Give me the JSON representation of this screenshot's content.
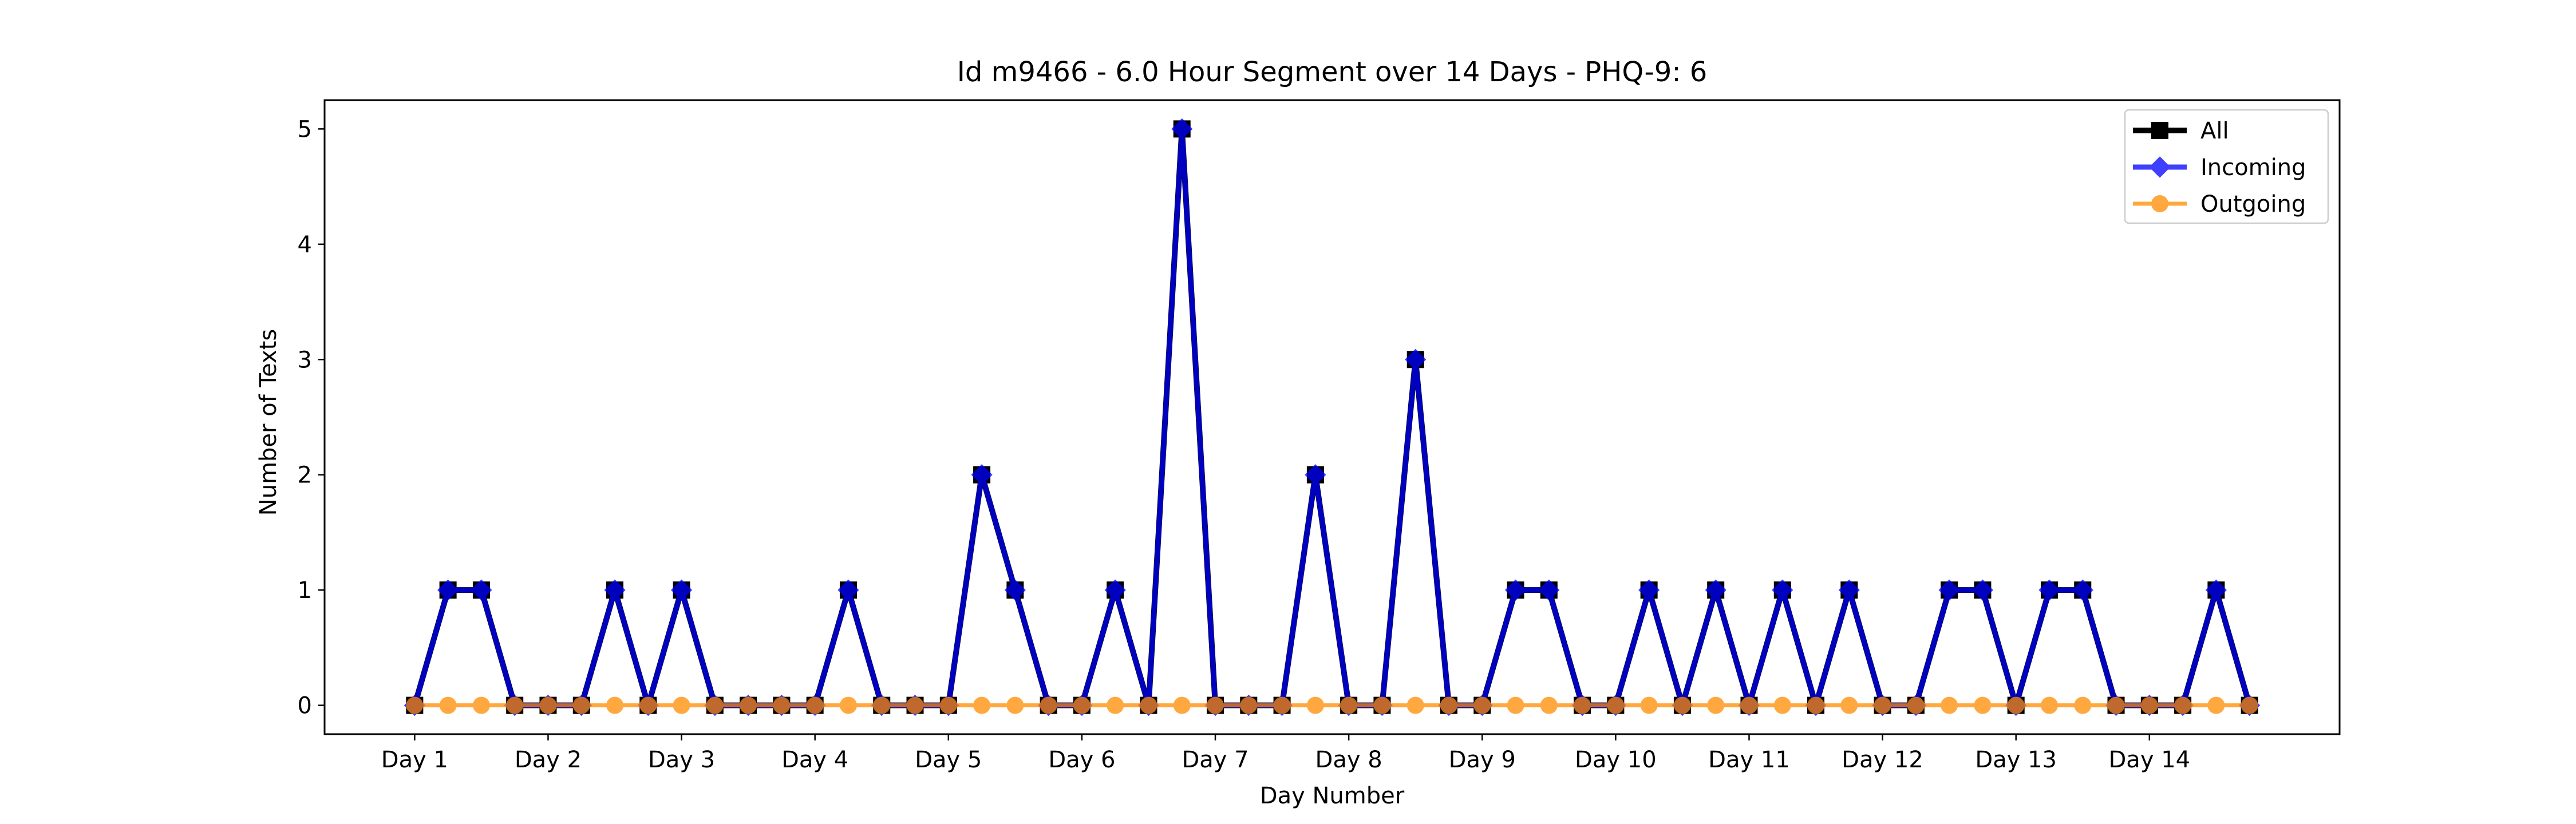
{
  "chart_data": {
    "type": "line",
    "title": "Id m9466 - 6.0 Hour Segment over 14 Days - PHQ-9: 6",
    "xlabel": "Day Number",
    "ylabel": "Number of Texts",
    "x": [
      0,
      1,
      2,
      3,
      4,
      5,
      6,
      7,
      8,
      9,
      10,
      11,
      12,
      13,
      14,
      15,
      16,
      17,
      18,
      19,
      20,
      21,
      22,
      23,
      24,
      25,
      26,
      27,
      28,
      29,
      30,
      31,
      32,
      33,
      34,
      35,
      36,
      37,
      38,
      39,
      40,
      41,
      42,
      43,
      44,
      45,
      46,
      47,
      48,
      49,
      50,
      51,
      52,
      53,
      54,
      55
    ],
    "xlim": [
      -2.7,
      57.7
    ],
    "ylim": [
      -0.25,
      5.25
    ],
    "xticks": [
      {
        "x": 0,
        "label": "Day 1"
      },
      {
        "x": 4,
        "label": "Day 2"
      },
      {
        "x": 8,
        "label": "Day 3"
      },
      {
        "x": 12,
        "label": "Day 4"
      },
      {
        "x": 16,
        "label": "Day 5"
      },
      {
        "x": 20,
        "label": "Day 6"
      },
      {
        "x": 24,
        "label": "Day 7"
      },
      {
        "x": 28,
        "label": "Day 8"
      },
      {
        "x": 32,
        "label": "Day 9"
      },
      {
        "x": 36,
        "label": "Day 10"
      },
      {
        "x": 40,
        "label": "Day 11"
      },
      {
        "x": 44,
        "label": "Day 12"
      },
      {
        "x": 48,
        "label": "Day 13"
      },
      {
        "x": 52,
        "label": "Day 14"
      }
    ],
    "yticks": [
      0,
      1,
      2,
      3,
      4,
      5
    ],
    "grid": false,
    "legend_position": "top-right",
    "series": [
      {
        "name": "All",
        "color": "#000000",
        "marker": "square",
        "values": [
          0,
          1,
          1,
          0,
          0,
          0,
          1,
          0,
          1,
          0,
          0,
          0,
          0,
          1,
          0,
          0,
          0,
          2,
          1,
          0,
          0,
          1,
          0,
          5,
          0,
          0,
          0,
          2,
          0,
          0,
          3,
          0,
          0,
          1,
          1,
          0,
          0,
          1,
          0,
          1,
          0,
          1,
          0,
          1,
          0,
          0,
          1,
          1,
          0,
          1,
          1,
          0,
          0,
          0,
          1,
          0
        ]
      },
      {
        "name": "Incoming",
        "color": "#0000ff",
        "marker": "diamond",
        "values": [
          0,
          1,
          1,
          0,
          0,
          0,
          1,
          0,
          1,
          0,
          0,
          0,
          0,
          1,
          0,
          0,
          0,
          2,
          1,
          0,
          0,
          1,
          0,
          5,
          0,
          0,
          0,
          2,
          0,
          0,
          3,
          0,
          0,
          1,
          1,
          0,
          0,
          1,
          0,
          1,
          0,
          1,
          0,
          1,
          0,
          0,
          1,
          1,
          0,
          1,
          1,
          0,
          0,
          0,
          1,
          0
        ]
      },
      {
        "name": "Outgoing",
        "color": "#ff8c00",
        "marker": "circle",
        "values": [
          0,
          0,
          0,
          0,
          0,
          0,
          0,
          0,
          0,
          0,
          0,
          0,
          0,
          0,
          0,
          0,
          0,
          0,
          0,
          0,
          0,
          0,
          0,
          0,
          0,
          0,
          0,
          0,
          0,
          0,
          0,
          0,
          0,
          0,
          0,
          0,
          0,
          0,
          0,
          0,
          0,
          0,
          0,
          0,
          0,
          0,
          0,
          0,
          0,
          0,
          0,
          0,
          0,
          0,
          0,
          0
        ]
      }
    ]
  }
}
